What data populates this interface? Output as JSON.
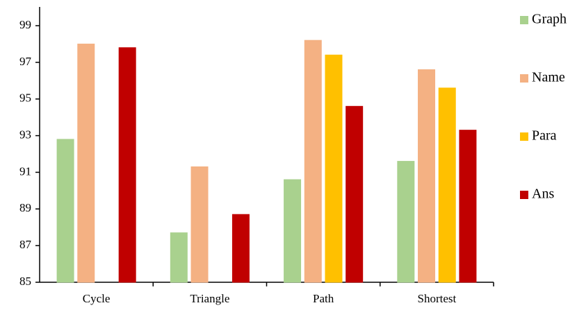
{
  "chart_data": {
    "type": "bar",
    "categories": [
      "Cycle",
      "Triangle",
      "Path",
      "Shortest"
    ],
    "series": [
      {
        "name": "Graph",
        "color": "#a9d18e",
        "values": [
          92.8,
          87.7,
          90.6,
          91.6
        ]
      },
      {
        "name": "Name",
        "color": "#f4b183",
        "values": [
          98.0,
          91.3,
          98.2,
          96.6
        ]
      },
      {
        "name": "Para",
        "color": "#ffc000",
        "values": [
          85,
          85,
          97.4,
          95.6
        ]
      },
      {
        "name": "Ans",
        "color": "#c00000",
        "values": [
          97.8,
          88.7,
          94.6,
          93.3
        ]
      }
    ],
    "ylim": [
      85,
      100
    ],
    "yticks": [
      85,
      87,
      89,
      91,
      93,
      95,
      97,
      99
    ],
    "grid": false,
    "legend": "right"
  }
}
